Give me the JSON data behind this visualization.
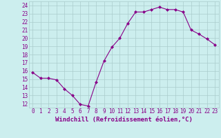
{
  "x": [
    0,
    1,
    2,
    3,
    4,
    5,
    6,
    7,
    8,
    9,
    10,
    11,
    12,
    13,
    14,
    15,
    16,
    17,
    18,
    19,
    20,
    21,
    22,
    23
  ],
  "y": [
    15.8,
    15.1,
    15.1,
    14.9,
    13.8,
    13.0,
    11.9,
    11.7,
    14.6,
    17.2,
    18.9,
    20.0,
    21.8,
    23.2,
    23.2,
    23.5,
    23.8,
    23.5,
    23.5,
    23.2,
    21.0,
    20.5,
    19.9,
    19.2
  ],
  "line_color": "#880088",
  "marker": "D",
  "marker_size": 2.0,
  "bg_color": "#cceeee",
  "grid_color": "#aacccc",
  "xlabel": "Windchill (Refroidissement éolien,°C)",
  "xlabel_color": "#880088",
  "tick_color": "#880088",
  "ytick_labels": [
    "12",
    "13",
    "14",
    "15",
    "16",
    "17",
    "18",
    "19",
    "20",
    "21",
    "22",
    "23",
    "24"
  ],
  "ylim": [
    11.5,
    24.5
  ],
  "xlim": [
    -0.5,
    23.5
  ],
  "xtick_labels": [
    "0",
    "1",
    "2",
    "3",
    "4",
    "5",
    "6",
    "7",
    "8",
    "9",
    "10",
    "11",
    "12",
    "13",
    "14",
    "15",
    "16",
    "17",
    "18",
    "19",
    "20",
    "21",
    "22",
    "23"
  ],
  "yticks": [
    12,
    13,
    14,
    15,
    16,
    17,
    18,
    19,
    20,
    21,
    22,
    23,
    24
  ],
  "font_size": 5.5,
  "xlabel_font_size": 6.5
}
